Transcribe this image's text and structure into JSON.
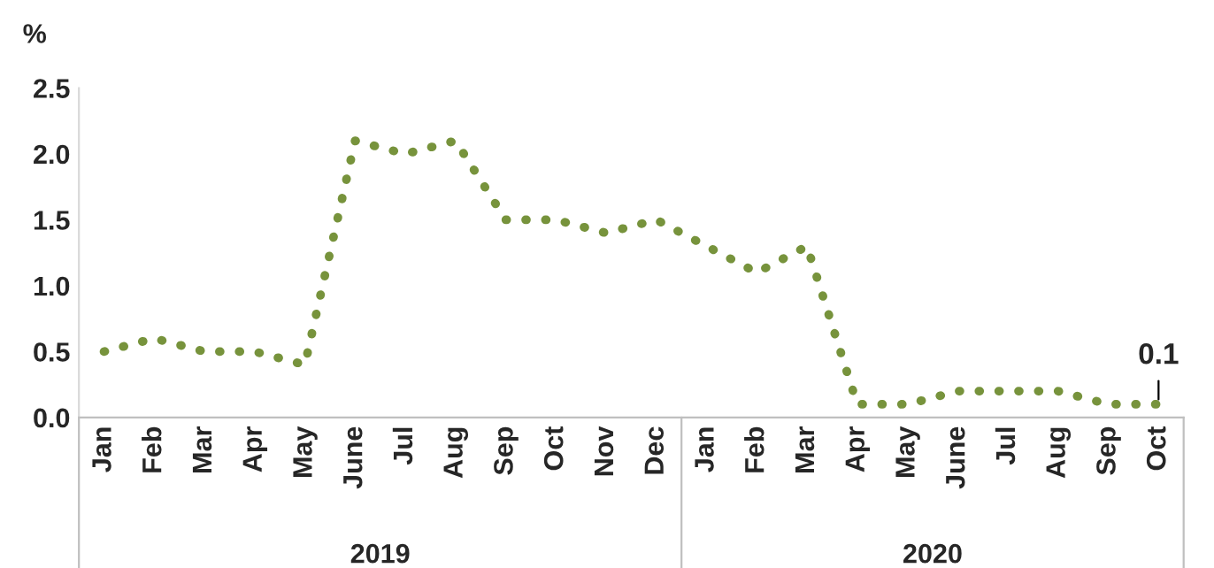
{
  "chart_data": {
    "type": "line",
    "ylabel": "%",
    "categories": [
      "Jan",
      "Feb",
      "Mar",
      "Apr",
      "May",
      "June",
      "Jul",
      "Aug",
      "Sep",
      "Oct",
      "Nov",
      "Dec",
      "Jan",
      "Feb",
      "Mar",
      "Apr",
      "May",
      "June",
      "Jul",
      "Aug",
      "Sep",
      "Oct"
    ],
    "series": [
      {
        "color": "#77933c",
        "values": [
          0.5,
          0.6,
          0.5,
          0.5,
          0.4,
          2.1,
          2.0,
          2.1,
          1.5,
          1.5,
          1.4,
          1.5,
          1.3,
          1.1,
          1.3,
          0.1,
          0.1,
          0.2,
          0.2,
          0.2,
          0.1,
          0.1
        ],
        "value_labels": [
          null,
          null,
          null,
          null,
          null,
          null,
          null,
          null,
          null,
          null,
          null,
          null,
          null,
          null,
          null,
          null,
          null,
          null,
          null,
          null,
          null,
          "0.1"
        ]
      }
    ],
    "annotations": [
      "2019",
      "2020"
    ],
    "ylim": [
      0,
      2.5
    ],
    "yticks": [
      {
        "value": 0,
        "label": "0.0"
      },
      {
        "value": 0.5,
        "label": "0.5"
      },
      {
        "value": 1,
        "label": "1.0"
      },
      {
        "value": 1.5,
        "label": "1.5"
      },
      {
        "value": 2,
        "label": "2.0"
      },
      {
        "value": 2.5,
        "label": "2.5"
      }
    ],
    "grid": false,
    "line_style": "dotted",
    "marker": "none"
  }
}
